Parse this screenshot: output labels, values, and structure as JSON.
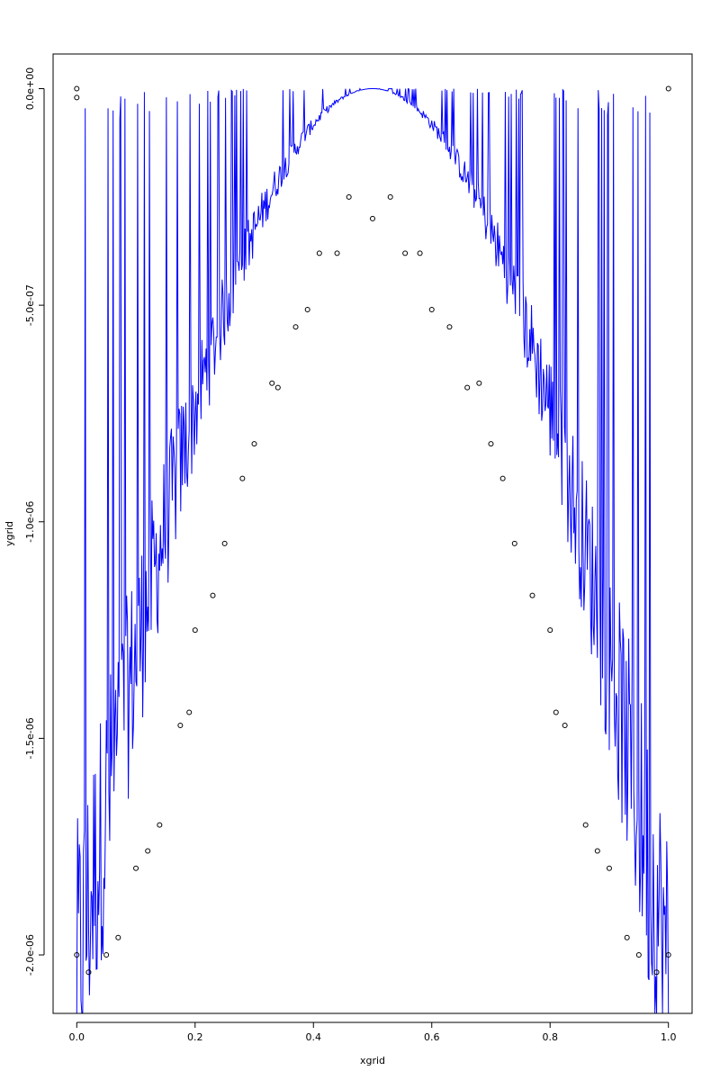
{
  "chart_data": {
    "type": "scatter",
    "xlabel": "xgrid",
    "ylabel": "ygrid",
    "xlim": [
      -0.04,
      1.04
    ],
    "ylim": [
      -2.135e-06,
      8e-08
    ],
    "x_ticks": [
      0.0,
      0.2,
      0.4,
      0.6,
      0.8,
      1.0
    ],
    "x_tick_labels": [
      "0.0",
      "0.2",
      "0.4",
      "0.6",
      "0.8",
      "1.0"
    ],
    "y_ticks": [
      0.0,
      -5e-07,
      -1e-06,
      -1.5e-06,
      -2e-06
    ],
    "y_tick_labels": [
      "0.0e+00",
      "-5.0e-07",
      "-1.0e-06",
      "-1.5e-06",
      "-2.0e-06"
    ],
    "grid": false,
    "series": [
      {
        "kind": "points",
        "marker": "open-circle",
        "color": "#000000",
        "points": [
          [
            0.0,
            -2.05e-08
          ],
          [
            0.0,
            0.0
          ],
          [
            0.0,
            -2e-06
          ],
          [
            0.02,
            -2.04e-06
          ],
          [
            0.05,
            -2e-06
          ],
          [
            0.07,
            -1.96e-06
          ],
          [
            0.1,
            -1.8e-06
          ],
          [
            0.12,
            -1.76e-06
          ],
          [
            0.14,
            -1.7e-06
          ],
          [
            0.175,
            -1.47e-06
          ],
          [
            0.19,
            -1.44e-06
          ],
          [
            0.2,
            -1.25e-06
          ],
          [
            0.23,
            -1.17e-06
          ],
          [
            0.25,
            -1.05e-06
          ],
          [
            0.28,
            -9e-07
          ],
          [
            0.3,
            -8.2e-07
          ],
          [
            0.33,
            -6.8e-07
          ],
          [
            0.34,
            -6.9e-07
          ],
          [
            0.37,
            -5.5e-07
          ],
          [
            0.39,
            -5.1e-07
          ],
          [
            0.41,
            -3.8e-07
          ],
          [
            0.44,
            -3.8e-07
          ],
          [
            0.46,
            -2.5e-07
          ],
          [
            0.5,
            -3e-07
          ],
          [
            0.53,
            -2.5e-07
          ],
          [
            0.555,
            -3.8e-07
          ],
          [
            0.58,
            -3.8e-07
          ],
          [
            0.6,
            -5.1e-07
          ],
          [
            0.63,
            -5.5e-07
          ],
          [
            0.66,
            -6.9e-07
          ],
          [
            0.68,
            -6.8e-07
          ],
          [
            0.7,
            -8.2e-07
          ],
          [
            0.72,
            -9e-07
          ],
          [
            0.74,
            -1.05e-06
          ],
          [
            0.77,
            -1.17e-06
          ],
          [
            0.8,
            -1.25e-06
          ],
          [
            0.81,
            -1.44e-06
          ],
          [
            0.825,
            -1.47e-06
          ],
          [
            0.86,
            -1.7e-06
          ],
          [
            0.88,
            -1.76e-06
          ],
          [
            0.9,
            -1.8e-06
          ],
          [
            0.93,
            -1.96e-06
          ],
          [
            0.95,
            -2e-06
          ],
          [
            0.98,
            -2.04e-06
          ],
          [
            1.0,
            -2e-06
          ],
          [
            1.0,
            0.0
          ]
        ]
      },
      {
        "kind": "line",
        "color": "#0000ff",
        "x_range": [
          0.0,
          1.0
        ]
      }
    ]
  }
}
